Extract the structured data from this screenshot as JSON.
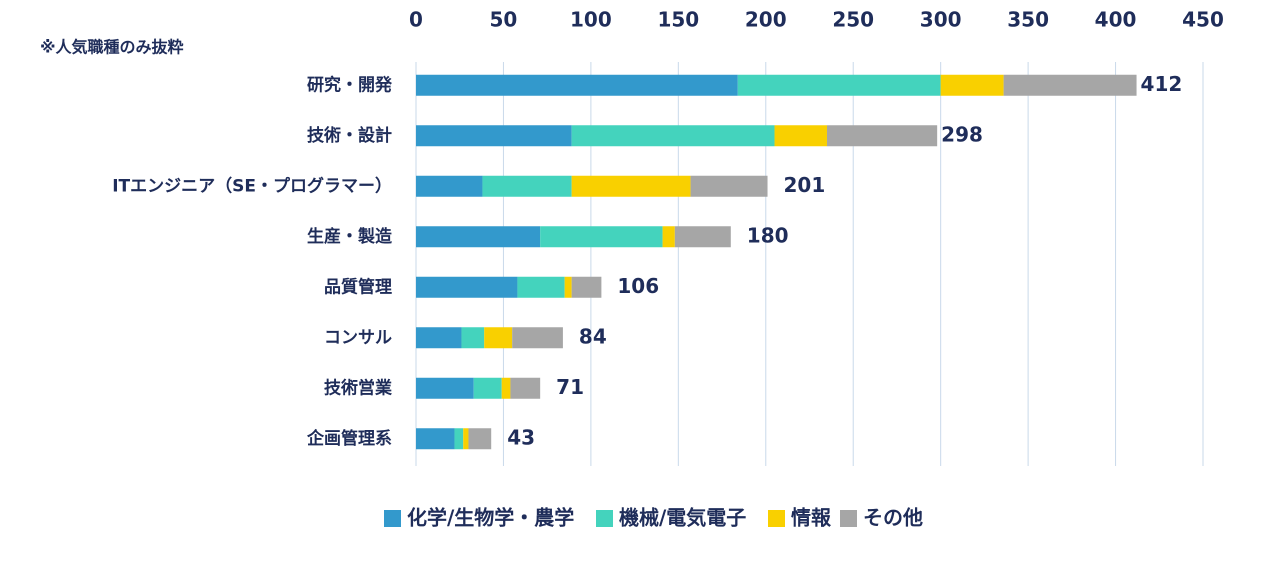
{
  "chart_data": {
    "type": "stacked-bar-horizontal",
    "annotation": "※人気職種のみ抜粋",
    "categories": [
      "研究・開発",
      "技術・設計",
      "ITエンジニア（SE・プログラマー）",
      "生産・製造",
      "品質管理",
      "コンサル",
      "技術営業",
      "企画管理系"
    ],
    "series": [
      {
        "name": "化学/生物学・農学",
        "color": "#3399cc",
        "values": [
          184,
          89,
          38,
          71,
          58,
          26,
          33,
          22
        ]
      },
      {
        "name": "機械/電気電子",
        "color": "#44d3bd",
        "values": [
          116,
          116,
          51,
          70,
          27,
          13,
          16,
          5
        ]
      },
      {
        "name": "情報",
        "color": "#f9d000",
        "values": [
          36,
          30,
          68,
          7,
          4,
          16,
          5,
          3
        ]
      },
      {
        "name": "その他",
        "color": "#a6a6a6",
        "values": [
          76,
          63,
          44,
          32,
          17,
          29,
          17,
          13
        ]
      }
    ],
    "totals": [
      412,
      298,
      201,
      180,
      106,
      84,
      71,
      43
    ],
    "xlim": [
      0,
      450
    ],
    "xticks": [
      0,
      50,
      100,
      150,
      200,
      250,
      300,
      350,
      400,
      450
    ],
    "grid": true,
    "legend": "bottom"
  }
}
